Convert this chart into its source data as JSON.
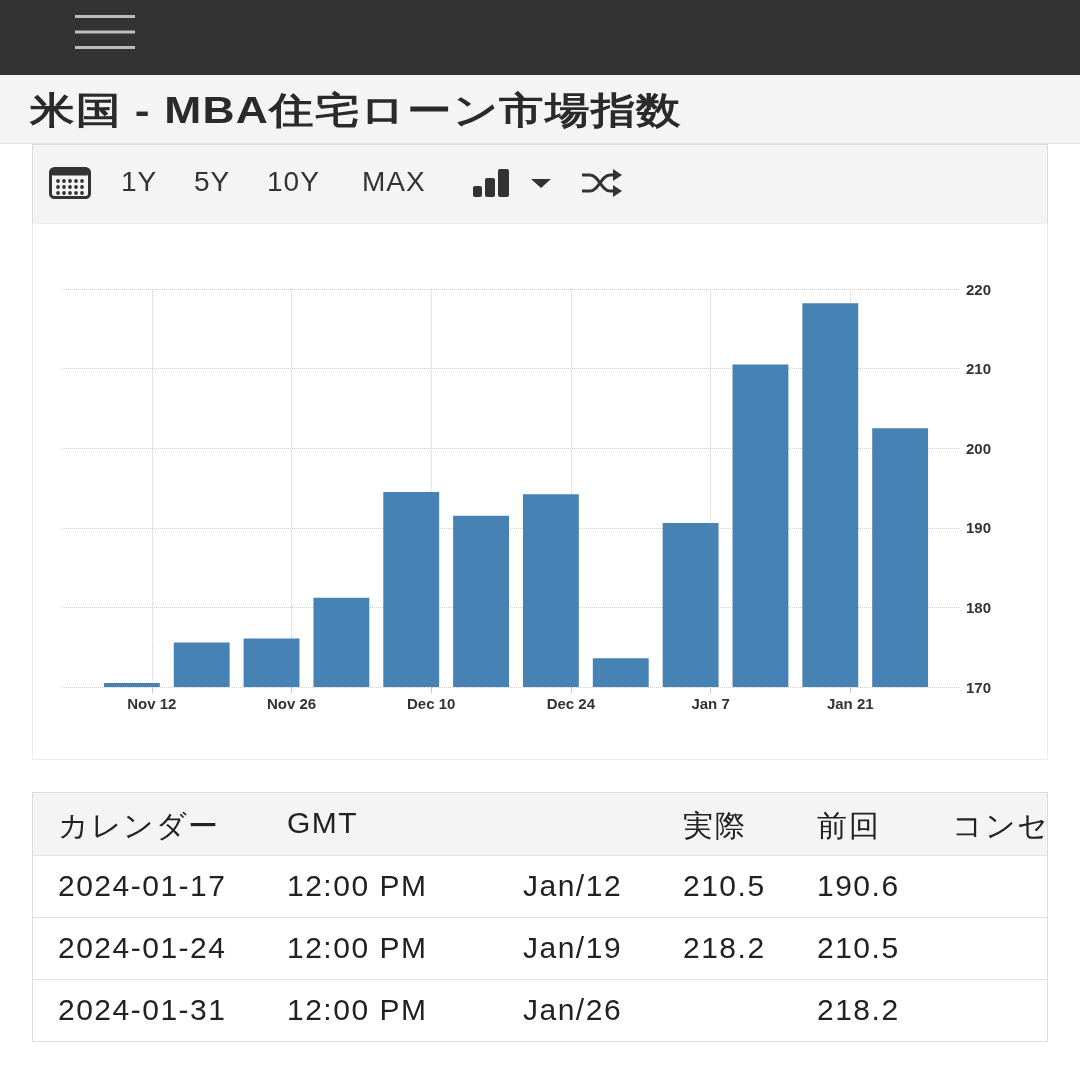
{
  "chart_data": [
    {
      "type": "bar",
      "title": "米国 - MBA住宅ローン市場指数",
      "annotations": [
        "1Y",
        "5Y",
        "10Y",
        "MAX"
      ],
      "x": [
        "2023-11-10",
        "2023-11-17",
        "2023-11-24",
        "2023-12-01",
        "2023-12-08",
        "2023-12-15",
        "2023-12-22",
        "2023-12-29",
        "2024-01-05",
        "2024-01-12",
        "2024-01-19",
        "2024-01-26"
      ],
      "values": [
        170.5,
        175.6,
        176.1,
        181.2,
        194.5,
        191.5,
        194.2,
        173.6,
        190.6,
        210.5,
        218.2,
        202.5
      ],
      "color": "#4682b4",
      "xlim": [
        "2023-11-03",
        "2024-02-01"
      ],
      "xticks": [
        {
          "value": "2023-11-12",
          "label": "Nov 12"
        },
        {
          "value": "2023-11-26",
          "label": "Nov 26"
        },
        {
          "value": "2023-12-10",
          "label": "Dec 10"
        },
        {
          "value": "2023-12-24",
          "label": "Dec 24"
        },
        {
          "value": "2024-01-07",
          "label": "Jan 7"
        },
        {
          "value": "2024-01-21",
          "label": "Jan 21"
        }
      ],
      "ylim": [
        170,
        220
      ],
      "yticks": [
        170,
        180,
        190,
        200,
        210,
        220
      ],
      "grid": true
    },
    {
      "type": "other",
      "categories": [
        "カレンダー",
        "GMT",
        null,
        "実際",
        "前回",
        "コンセ"
      ],
      "cell_labels": [
        [
          "2024-01-17",
          "12:00 PM",
          "Jan/12",
          "210.5",
          "190.6",
          null
        ],
        [
          "2024-01-24",
          "12:00 PM",
          "Jan/19",
          "218.2",
          "210.5",
          null
        ],
        [
          "2024-01-31",
          "12:00 PM",
          "Jan/26",
          null,
          "218.2",
          null
        ]
      ]
    }
  ]
}
